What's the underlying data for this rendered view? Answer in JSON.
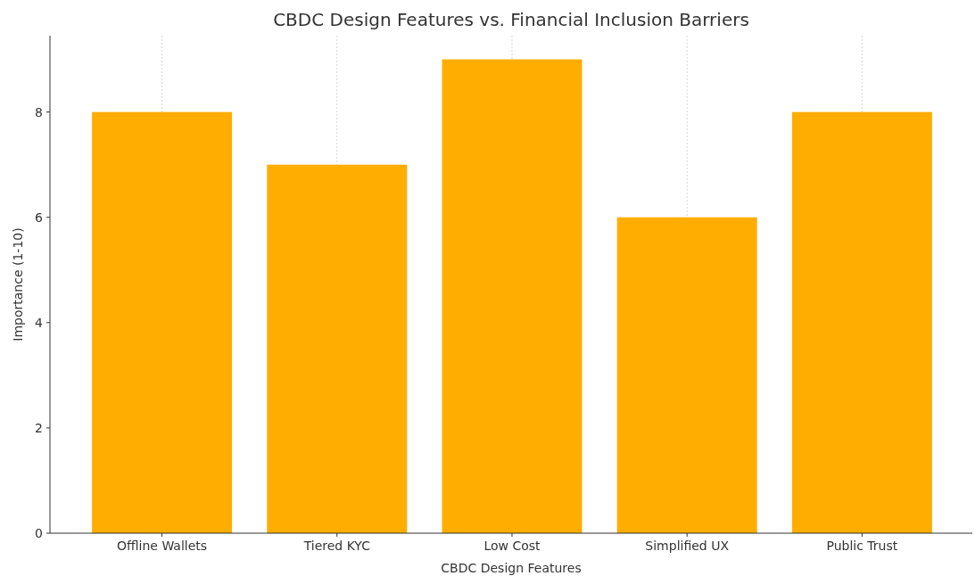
{
  "chart_data": {
    "type": "bar",
    "title": "CBDC Design Features vs. Financial Inclusion Barriers",
    "xlabel": "CBDC Design Features",
    "ylabel": "Importance (1-10)",
    "categories": [
      "Offline Wallets",
      "Tiered KYC",
      "Low Cost",
      "Simplified UX",
      "Public Trust"
    ],
    "values": [
      8,
      7,
      9,
      6,
      8
    ],
    "color": "#ffad00",
    "ylim": [
      0,
      9.45
    ],
    "yticks": [
      0,
      2,
      4,
      6,
      8
    ],
    "grid": "x"
  }
}
